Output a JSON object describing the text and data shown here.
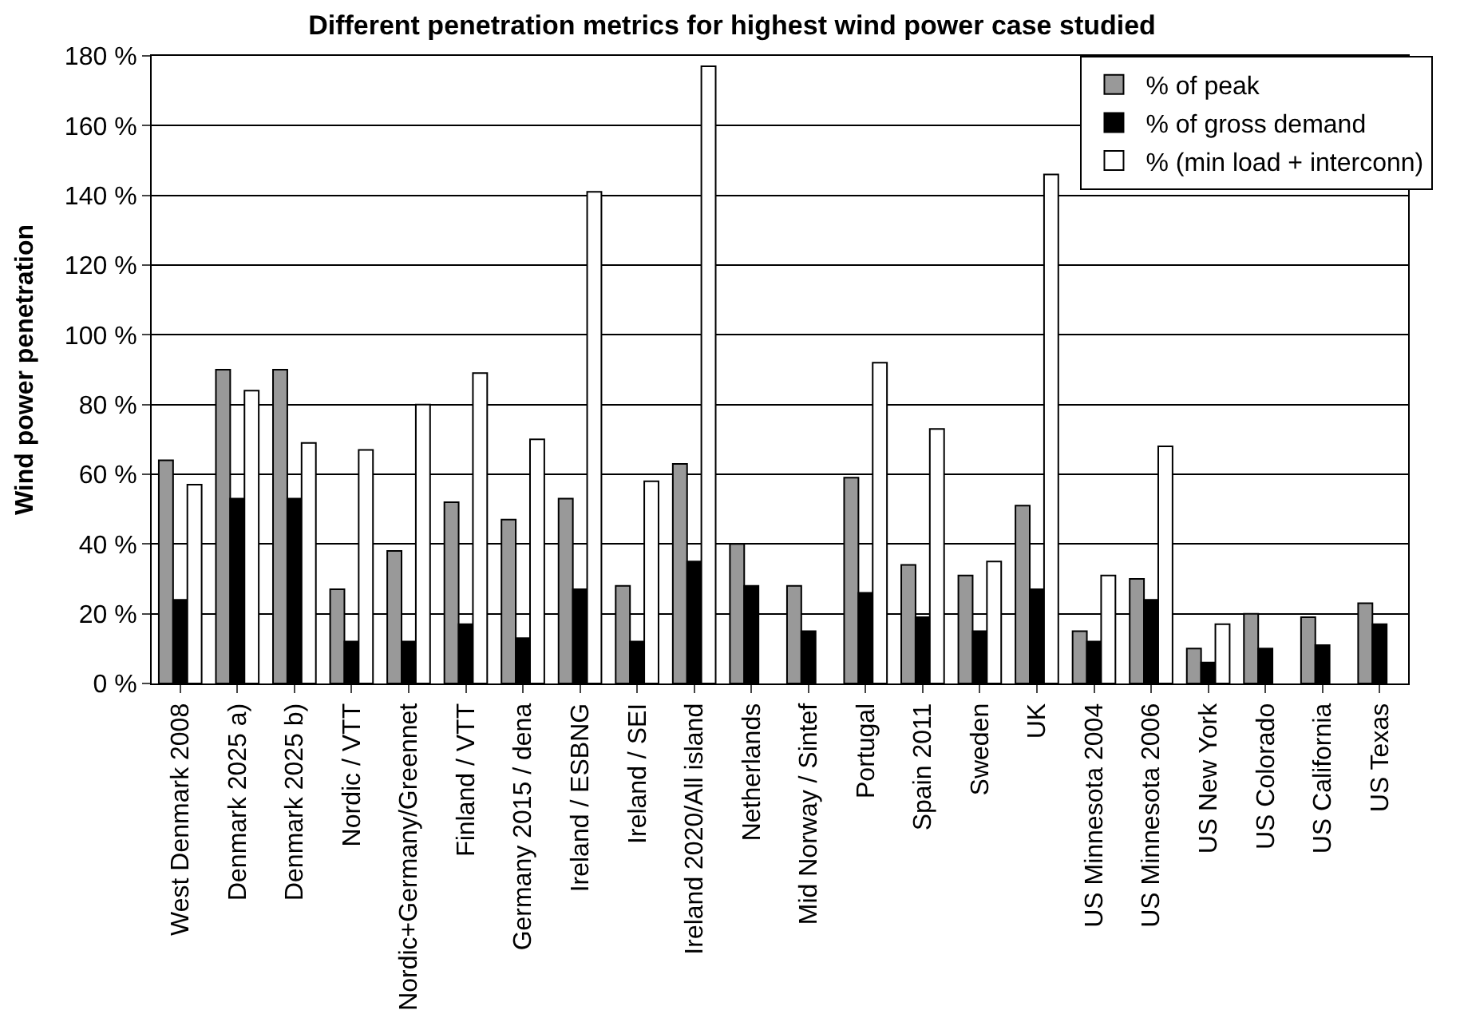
{
  "chart_data": {
    "type": "bar",
    "title": "Different penetration metrics for highest wind power case studied",
    "ylabel": "Wind power penetration",
    "categories": [
      "West Denmark 2008",
      "Denmark 2025 a)",
      "Denmark 2025 b)",
      "Nordic / VTT",
      "Nordic+Germany/Greennet",
      "Finland / VTT",
      "Germany 2015 / dena",
      "Ireland / ESBNG",
      "Ireland / SEI",
      "Ireland 2020/All island",
      "Netherlands",
      "Mid Norway / Sintef",
      "Portugal",
      "Spain 2011",
      "Sweden",
      "UK",
      "US Minnesota 2004",
      "US Minnesota 2006",
      "US New York",
      "US Colorado",
      "US California",
      "US Texas"
    ],
    "series": [
      {
        "name": "% of peak",
        "color": "#999999",
        "values": [
          64,
          90,
          90,
          27,
          38,
          52,
          47,
          53,
          28,
          63,
          40,
          28,
          59,
          34,
          31,
          51,
          15,
          30,
          10,
          20,
          19,
          23
        ]
      },
      {
        "name": "% of gross demand",
        "color": "#000000",
        "values": [
          24,
          53,
          53,
          12,
          12,
          17,
          13,
          27,
          12,
          35,
          28,
          15,
          26,
          19,
          15,
          27,
          12,
          24,
          6,
          10,
          11,
          17
        ]
      },
      {
        "name": "% (min load + interconn)",
        "color": "#ffffff",
        "values": [
          57,
          84,
          69,
          67,
          80,
          89,
          70,
          141,
          58,
          177,
          null,
          null,
          92,
          73,
          35,
          146,
          31,
          68,
          17,
          null,
          null,
          null
        ]
      }
    ],
    "ylim": [
      0,
      180
    ],
    "yticks": [
      {
        "value": 0,
        "label": "0 %"
      },
      {
        "value": 20,
        "label": "20 %"
      },
      {
        "value": 40,
        "label": "40 %"
      },
      {
        "value": 60,
        "label": "60 %"
      },
      {
        "value": 80,
        "label": "80 %"
      },
      {
        "value": 100,
        "label": "100 %"
      },
      {
        "value": 120,
        "label": "120 %"
      },
      {
        "value": 140,
        "label": "140 %"
      },
      {
        "value": 160,
        "label": "160 %"
      },
      {
        "value": 180,
        "label": "180 %"
      }
    ],
    "grid": "y",
    "legend": "top right"
  }
}
